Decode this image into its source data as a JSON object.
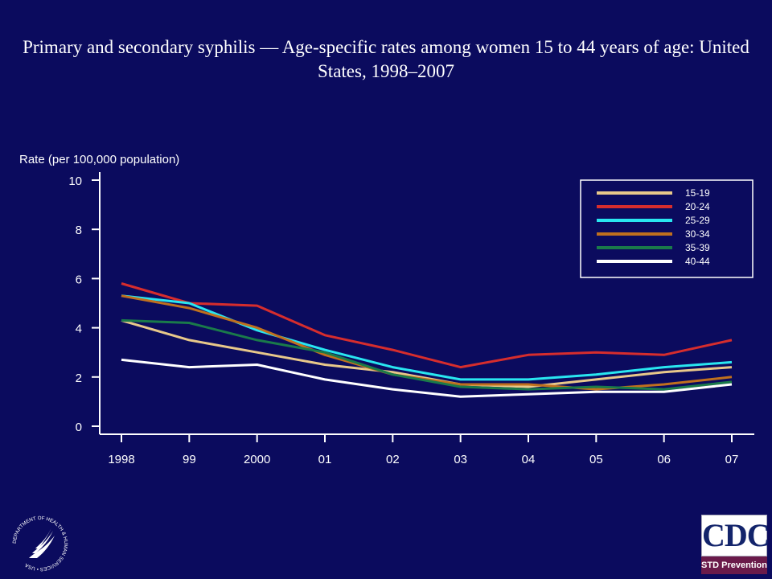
{
  "title": "Primary and secondary syphilis — Age-specific rates among women 15 to 44 years of age: United States, 1998–2007",
  "chart_data": {
    "type": "line",
    "ylabel": "Rate (per 100,000 population)",
    "xlabel": "",
    "categories": [
      "1998",
      "99",
      "2000",
      "01",
      "02",
      "03",
      "04",
      "05",
      "06",
      "07"
    ],
    "ylim": [
      0,
      10
    ],
    "yticks": [
      0,
      2,
      4,
      6,
      8,
      10
    ],
    "grid": false,
    "legend_position": "top-right",
    "series": [
      {
        "name": "15-19",
        "color": "#e8c88a",
        "values": [
          4.3,
          3.5,
          3.0,
          2.5,
          2.2,
          1.7,
          1.6,
          1.9,
          2.2,
          2.4
        ]
      },
      {
        "name": "20-24",
        "color": "#d62d2d",
        "values": [
          5.8,
          5.0,
          4.9,
          3.7,
          3.1,
          2.4,
          2.9,
          3.0,
          2.9,
          3.5
        ]
      },
      {
        "name": "25-29",
        "color": "#29e6f0",
        "values": [
          5.3,
          5.0,
          3.9,
          3.1,
          2.4,
          1.9,
          1.9,
          2.1,
          2.4,
          2.6
        ]
      },
      {
        "name": "30-34",
        "color": "#c0701e",
        "values": [
          5.3,
          4.8,
          4.0,
          2.9,
          2.1,
          1.7,
          1.7,
          1.5,
          1.7,
          2.0
        ]
      },
      {
        "name": "35-39",
        "color": "#1a7a4a",
        "values": [
          4.3,
          4.2,
          3.5,
          3.0,
          2.1,
          1.6,
          1.5,
          1.6,
          1.5,
          1.8
        ]
      },
      {
        "name": "40-44",
        "color": "#ffffff",
        "values": [
          2.7,
          2.4,
          2.5,
          1.9,
          1.5,
          1.2,
          1.3,
          1.4,
          1.4,
          1.7
        ]
      }
    ]
  },
  "logos": {
    "hhs_seal_text": "DEPARTMENT OF HEALTH & HUMAN SERVICES • USA",
    "cdc_letters": "CDC",
    "cdc_subtitle": "STD Prevention"
  }
}
